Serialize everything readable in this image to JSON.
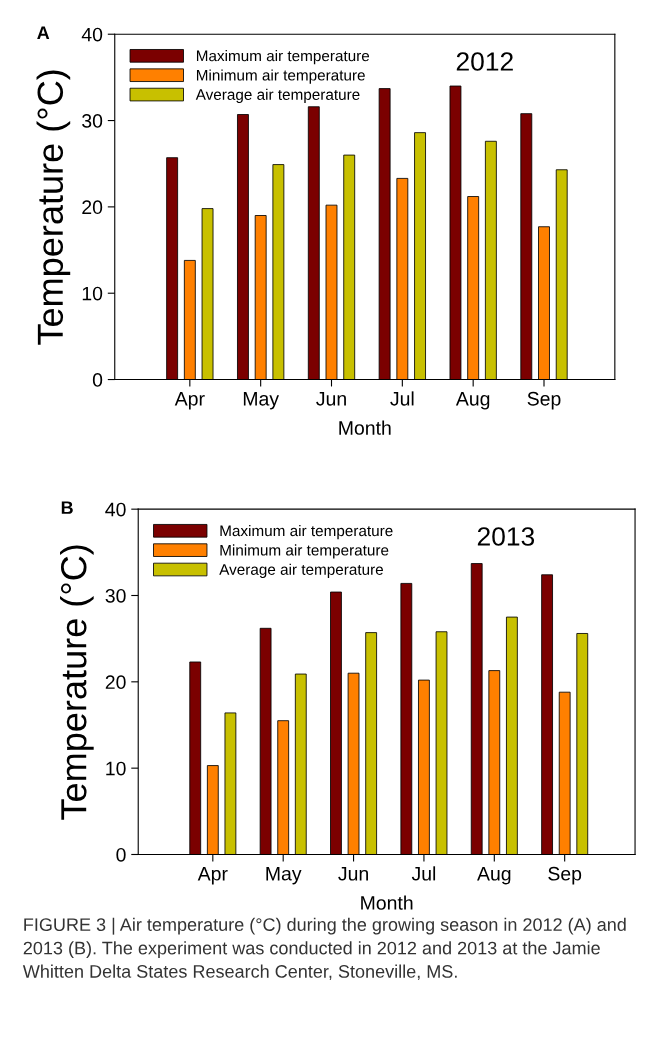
{
  "chart_data": [
    {
      "type": "bar",
      "title": "2012",
      "xlabel": "Month",
      "ylabel": "Temperature (°C)",
      "categories": [
        "Apr",
        "May",
        "Jun",
        "Jul",
        "Aug",
        "Sep"
      ],
      "ylim": [
        0,
        40
      ],
      "yticks": [
        0,
        10,
        20,
        30,
        40
      ],
      "legend": "top left",
      "grid": false,
      "annotations": [
        "A"
      ],
      "series": [
        {
          "name": "Maximum air temperature",
          "color": "#7b0000",
          "values": [
            25.7,
            30.7,
            31.6,
            33.7,
            34.0,
            30.8
          ]
        },
        {
          "name": "Minimum air temperature",
          "color": "#ff8000",
          "values": [
            13.8,
            19.0,
            20.2,
            23.3,
            21.2,
            17.7
          ]
        },
        {
          "name": "Average air temperature",
          "color": "#c8c000",
          "values": [
            19.8,
            24.9,
            26.0,
            28.6,
            27.6,
            24.3
          ]
        }
      ]
    },
    {
      "type": "bar",
      "title": "2013",
      "xlabel": "Month",
      "ylabel": "Temperature (°C)",
      "categories": [
        "Apr",
        "May",
        "Jun",
        "Jul",
        "Aug",
        "Sep"
      ],
      "ylim": [
        0,
        40
      ],
      "yticks": [
        0,
        10,
        20,
        30,
        40
      ],
      "legend": "top left",
      "grid": false,
      "annotations": [
        "B",
        "FIGURE 3 | Air temperature (°C) during the growing season in 2012 (A) and 2013 (B). The experiment was conducted in 2012 and 2013 at the Jamie Whitten Delta States Research Center, Stoneville, MS."
      ],
      "series": [
        {
          "name": "Maximum air temperature",
          "color": "#7b0000",
          "values": [
            22.3,
            26.2,
            30.4,
            31.4,
            33.7,
            32.4
          ]
        },
        {
          "name": "Minimum air temperature",
          "color": "#ff8000",
          "values": [
            10.3,
            15.5,
            21.0,
            20.2,
            21.3,
            18.8
          ]
        },
        {
          "name": "Average air temperature",
          "color": "#c8c000",
          "values": [
            16.4,
            20.9,
            25.7,
            25.8,
            27.5,
            25.6
          ]
        }
      ]
    }
  ]
}
